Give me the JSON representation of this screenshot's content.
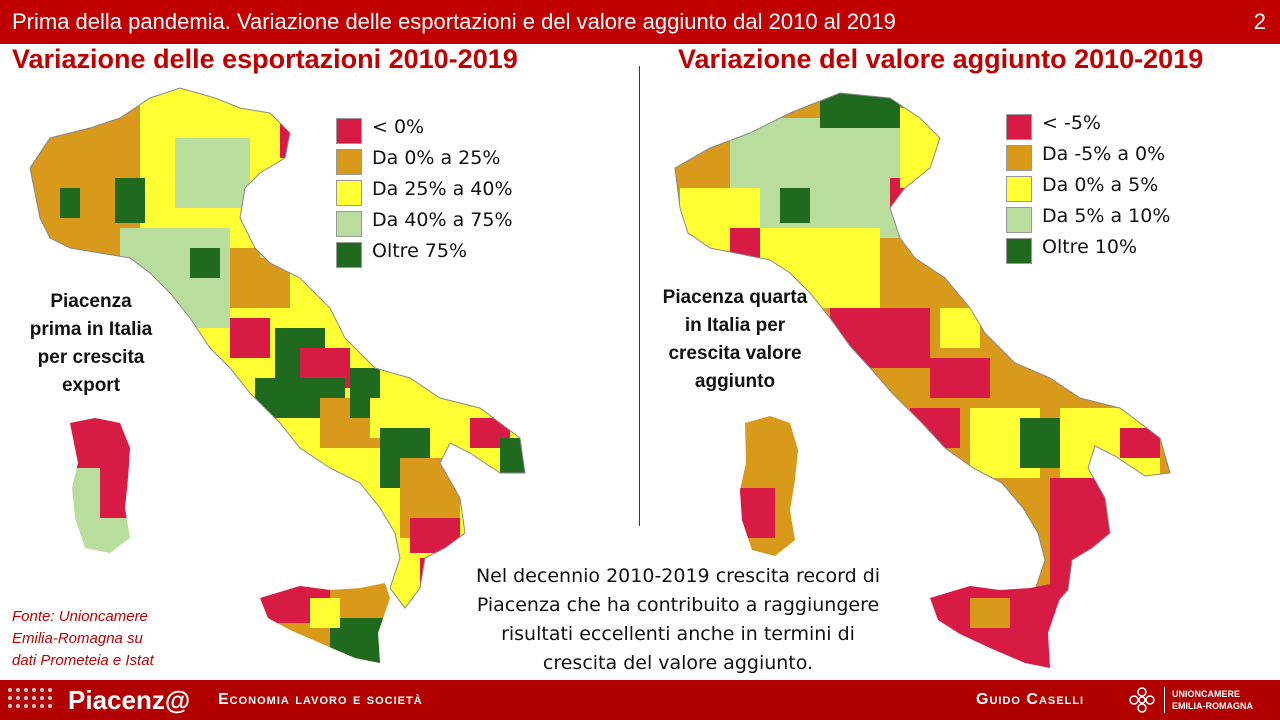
{
  "header": {
    "title": "Prima della pandemia. Variazione delle esportazioni e del valore aggiunto dal 2010 al 2019",
    "page_number": "2"
  },
  "left_panel": {
    "title": "Variazione delle esportazioni 2010-2019",
    "legend": [
      {
        "label": "< 0%",
        "color": "#d81b45"
      },
      {
        "label": "Da 0% a 25%",
        "color": "#d99a1c"
      },
      {
        "label": "Da 25% a 40%",
        "color": "#ffff33"
      },
      {
        "label": "Da 40% a 75%",
        "color": "#b8dd9c"
      },
      {
        "label": "Oltre 75%",
        "color": "#1f6a1f"
      }
    ],
    "note_lines": [
      "Piacenza",
      "prima in Italia",
      "per crescita",
      "export"
    ],
    "source_lines": [
      "Fonte: Unioncamere",
      "Emilia-Romagna su",
      "dati Prometeia e Istat"
    ]
  },
  "right_panel": {
    "title": "Variazione del valore aggiunto 2010-2019",
    "legend": [
      {
        "label": "< -5%",
        "color": "#d81b45"
      },
      {
        "label": "Da -5% a 0%",
        "color": "#d99a1c"
      },
      {
        "label": "Da 0% a 5%",
        "color": "#ffff33"
      },
      {
        "label": "Da 5% a 10%",
        "color": "#b8dd9c"
      },
      {
        "label": "Oltre 10%",
        "color": "#1f6a1f"
      }
    ],
    "note_lines": [
      "Piacenza quarta",
      "in Italia per",
      "crescita valore",
      "aggiunto"
    ]
  },
  "bottom_note_lines": [
    "Nel decennio 2010-2019 crescita record di",
    "Piacenza che ha contribuito a raggiungere",
    "risultati eccellenti anche in termini di",
    "crescita del valore aggiunto."
  ],
  "footer": {
    "brand": "Piacenz@",
    "subtitle": "Economia lavoro e società",
    "author": "Guido Caselli",
    "org_line1": "UNIONCAMERE",
    "org_line2": "EMILIA-ROMAGNA"
  },
  "colors": {
    "accent": "#c00000",
    "neg": "#d81b45",
    "low": "#d99a1c",
    "mid": "#ffff33",
    "high": "#b8dd9c",
    "top": "#1f6a1f"
  }
}
